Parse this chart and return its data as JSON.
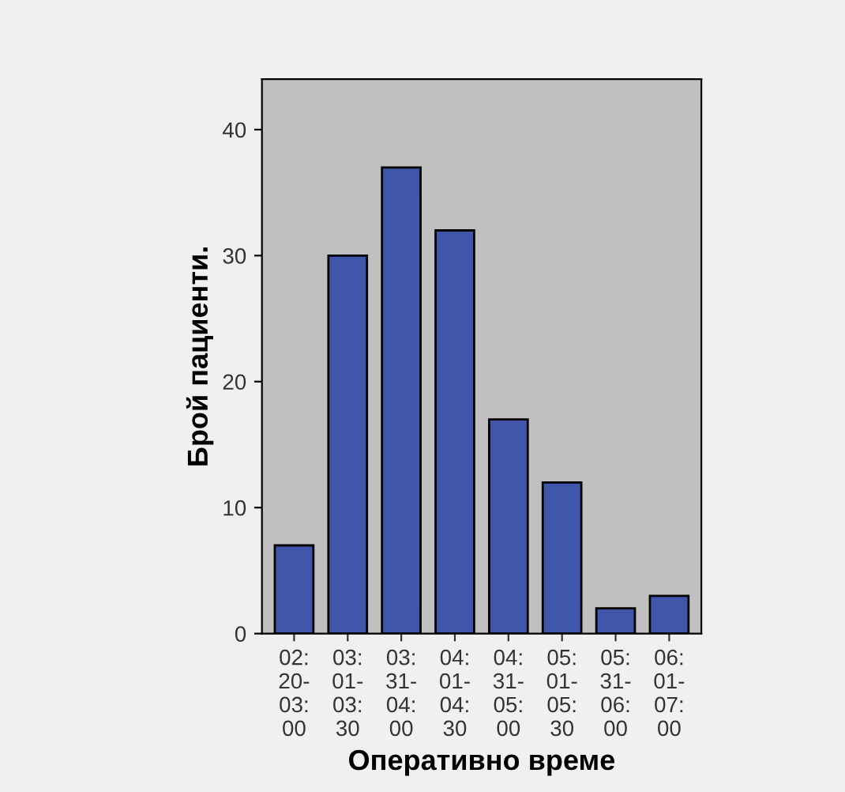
{
  "chart_data": {
    "type": "bar",
    "xlabel": "Оперативно време",
    "ylabel": "Брой пациенти.",
    "categories": [
      "02:\n20-\n03:\n00",
      "03:\n01-\n03:\n30",
      "03:\n31-\n04:\n00",
      "04:\n01-\n04:\n30",
      "04:\n31-\n05:\n00",
      "05:\n01-\n05:\n30",
      "05:\n31-\n06:\n00",
      "06:\n01-\n07:\n00"
    ],
    "values": [
      7,
      30,
      37,
      32,
      17,
      12,
      2,
      3
    ],
    "color": "#3f56aa",
    "ylim": [
      0,
      44
    ],
    "yticks": [
      0,
      10,
      20,
      30,
      40
    ],
    "grid": false
  }
}
